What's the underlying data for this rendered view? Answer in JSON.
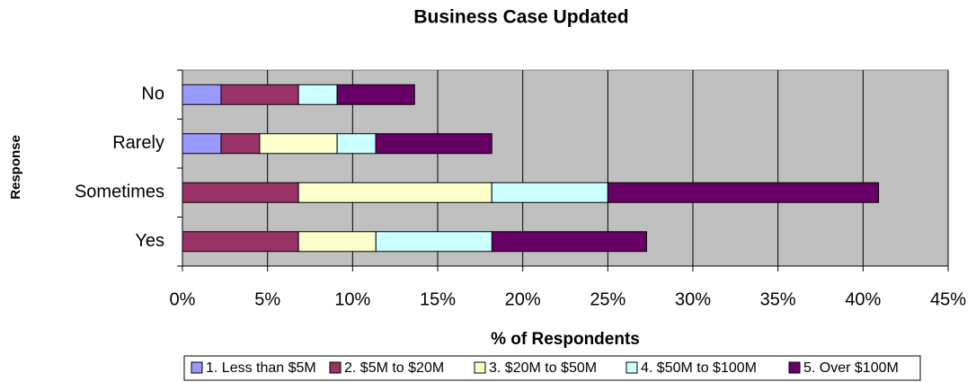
{
  "chart_data": {
    "type": "stacked-barh",
    "title": "Business Case Updated",
    "xlabel": "% of Respondents",
    "ylabel": "Response",
    "categories": [
      "No",
      "Rarely",
      "Sometimes",
      "Yes"
    ],
    "series": [
      {
        "name": "1. Less than $5M",
        "color": "#9999ff",
        "values": [
          2.27,
          2.27,
          0,
          0
        ]
      },
      {
        "name": "2. $5M to $20M",
        "color": "#993366",
        "values": [
          4.55,
          2.27,
          6.82,
          6.82
        ]
      },
      {
        "name": "3. $20M to $50M",
        "color": "#ffffcc",
        "values": [
          0,
          4.55,
          11.36,
          4.55
        ]
      },
      {
        "name": "4. $50M to $100M",
        "color": "#ccffff",
        "values": [
          2.27,
          2.27,
          6.82,
          6.82
        ]
      },
      {
        "name": "5. Over $100M",
        "color": "#660066",
        "values": [
          4.55,
          6.82,
          15.91,
          9.09
        ]
      }
    ],
    "xlim": [
      0,
      45
    ],
    "xticks": [
      {
        "value": 0,
        "label": "0%"
      },
      {
        "value": 5,
        "label": "5%"
      },
      {
        "value": 10,
        "label": "10%"
      },
      {
        "value": 15,
        "label": "15%"
      },
      {
        "value": 20,
        "label": "20%"
      },
      {
        "value": 25,
        "label": "25%"
      },
      {
        "value": 30,
        "label": "30%"
      },
      {
        "value": 35,
        "label": "35%"
      },
      {
        "value": 40,
        "label": "40%"
      },
      {
        "value": 45,
        "label": "45%"
      }
    ],
    "grid": true,
    "legend": "bottom"
  }
}
